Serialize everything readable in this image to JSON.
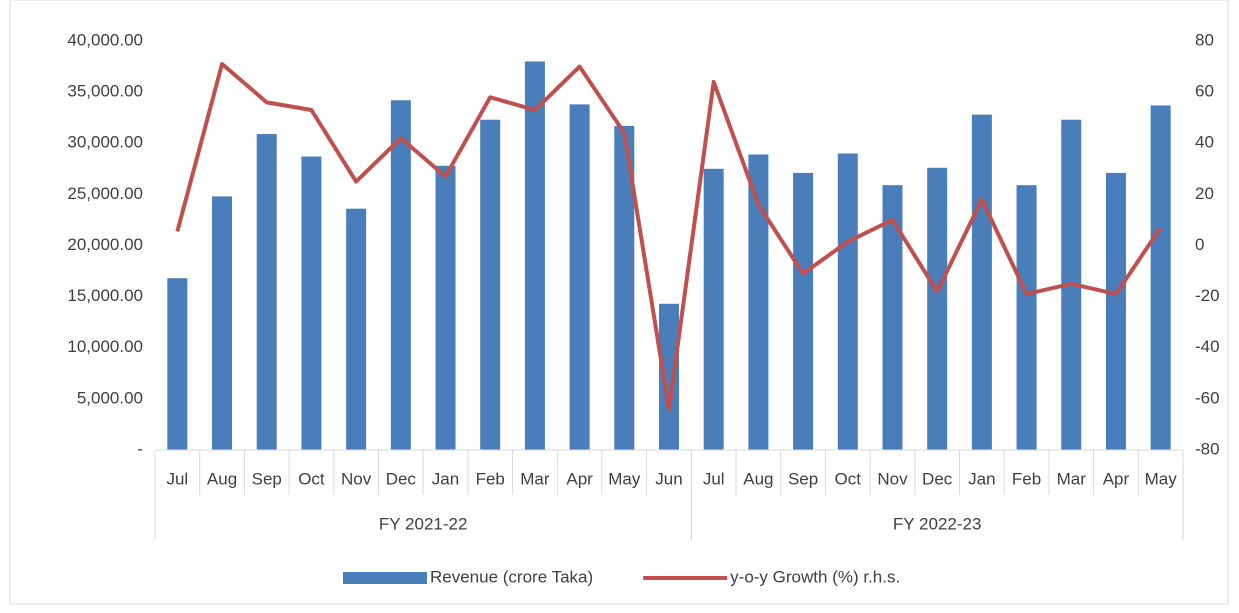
{
  "chart_data": {
    "type": "bar",
    "groups": [
      {
        "name": "FY 2021-22",
        "categories": [
          "Jul",
          "Aug",
          "Sep",
          "Oct",
          "Nov",
          "Dec",
          "Jan",
          "Feb",
          "Mar",
          "Apr",
          "May",
          "Jun"
        ]
      },
      {
        "name": "FY 2022-23",
        "categories": [
          "Jul",
          "Aug",
          "Sep",
          "Oct",
          "Nov",
          "Dec",
          "Jan",
          "Feb",
          "Mar",
          "Apr",
          "May"
        ]
      }
    ],
    "series": [
      {
        "name": "Revenue (crore Taka)",
        "type": "bar",
        "color": "#4a7ebb",
        "values": [
          16800,
          24800,
          30900,
          28700,
          23600,
          34200,
          27800,
          32300,
          38000,
          33800,
          31700,
          14300,
          27500,
          28900,
          27100,
          29000,
          25900,
          27600,
          32800,
          25900,
          32300,
          27100,
          33700
        ]
      },
      {
        "name": "y-o-y Growth (%) r.h.s.",
        "type": "line",
        "axis": "y2",
        "color": "#c0504d",
        "values": [
          5.5,
          71,
          56,
          53,
          25,
          42,
          27,
          58,
          53,
          70,
          44,
          -64,
          64,
          16,
          -11,
          1.5,
          10,
          -18,
          18,
          -19,
          -15,
          -19,
          7
        ]
      }
    ],
    "ylim": [
      0,
      40000
    ],
    "yticks": [
      {
        "value": 0,
        "label": "-"
      },
      {
        "value": 5000,
        "label": "5,000.00"
      },
      {
        "value": 10000,
        "label": "10,000.00"
      },
      {
        "value": 15000,
        "label": "15,000.00"
      },
      {
        "value": 20000,
        "label": "20,000.00"
      },
      {
        "value": 25000,
        "label": "25,000.00"
      },
      {
        "value": 30000,
        "label": "30,000.00"
      },
      {
        "value": 35000,
        "label": "35,000.00"
      },
      {
        "value": 40000,
        "label": "40,000.00"
      }
    ],
    "y2lim": [
      -80,
      80
    ],
    "y2ticks": [
      -80,
      -60,
      -40,
      -20,
      0,
      20,
      40,
      60,
      80
    ],
    "legend": "bottom"
  }
}
